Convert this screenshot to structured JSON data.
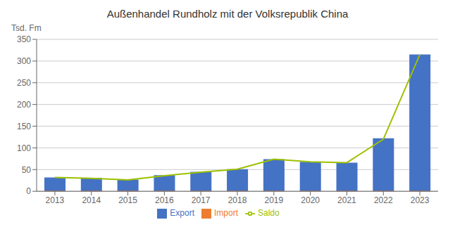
{
  "chart_data": {
    "type": "bar",
    "title": "Außenhandel Rundholz mit der Volksrepublik China",
    "y_label": "Tsd. Fm",
    "categories": [
      "2013",
      "2014",
      "2015",
      "2016",
      "2017",
      "2018",
      "2019",
      "2020",
      "2021",
      "2022",
      "2023"
    ],
    "series": [
      {
        "name": "Export",
        "type": "bar",
        "color": "#4472C4",
        "values": [
          32,
          31,
          27,
          37,
          45,
          51,
          74,
          68,
          66,
          122,
          315
        ]
      },
      {
        "name": "Import",
        "type": "bar",
        "color": "#ED7D31",
        "values": [
          1,
          1,
          1,
          1,
          1,
          1,
          1,
          1,
          1,
          1,
          1
        ]
      },
      {
        "name": "Saldo",
        "type": "line",
        "color": "#9DC100",
        "values": [
          32,
          30,
          26,
          36,
          44,
          51,
          74,
          68,
          66,
          120,
          315
        ]
      }
    ],
    "ylim": [
      0,
      350
    ],
    "yticks": [
      0,
      50,
      100,
      150,
      200,
      250,
      300,
      350
    ],
    "grid": true,
    "legend": "bottom"
  }
}
